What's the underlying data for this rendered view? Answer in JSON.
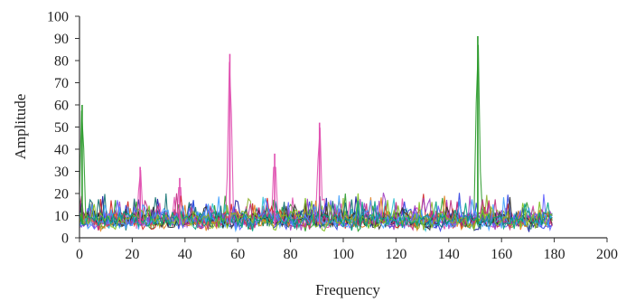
{
  "chart_data": {
    "type": "line",
    "title": "",
    "xlabel": "Frequency",
    "ylabel": "Amplitude",
    "xlim": [
      0,
      200
    ],
    "ylim": [
      0,
      100
    ],
    "x_ticks": [
      "0",
      "20",
      "40",
      "60",
      "80",
      "100",
      "120",
      "140",
      "160",
      "180",
      "200"
    ],
    "y_ticks": [
      "0",
      "10",
      "20",
      "30",
      "40",
      "50",
      "60",
      "70",
      "80",
      "90",
      "100"
    ],
    "grid": false,
    "legend": "none",
    "series_count_estimated": 16,
    "series_colors": [
      "#1a1aa0",
      "#2a9a2a",
      "#e050b0",
      "#30c0d0",
      "#d02020",
      "#3040e0",
      "#90b030",
      "#a040c0",
      "#107070",
      "#e08020",
      "#6060ff",
      "#303030",
      "#c03080",
      "#40a0ff",
      "#80c020",
      "#00a080"
    ],
    "peaks": [
      {
        "x": 1,
        "y": 60,
        "color": "#2a9a2a"
      },
      {
        "x": 23,
        "y": 32,
        "color": "#e050b0"
      },
      {
        "x": 38,
        "y": 27,
        "color": "#e050b0"
      },
      {
        "x": 57,
        "y": 83,
        "color": "#e050b0"
      },
      {
        "x": 74,
        "y": 38,
        "color": "#e050b0"
      },
      {
        "x": 91,
        "y": 52,
        "color": "#e050b0"
      },
      {
        "x": 151,
        "y": 91,
        "color": "#2a9a2a"
      }
    ],
    "baseline_range": [
      3,
      20
    ],
    "x_range_of_data": [
      0,
      180
    ]
  }
}
